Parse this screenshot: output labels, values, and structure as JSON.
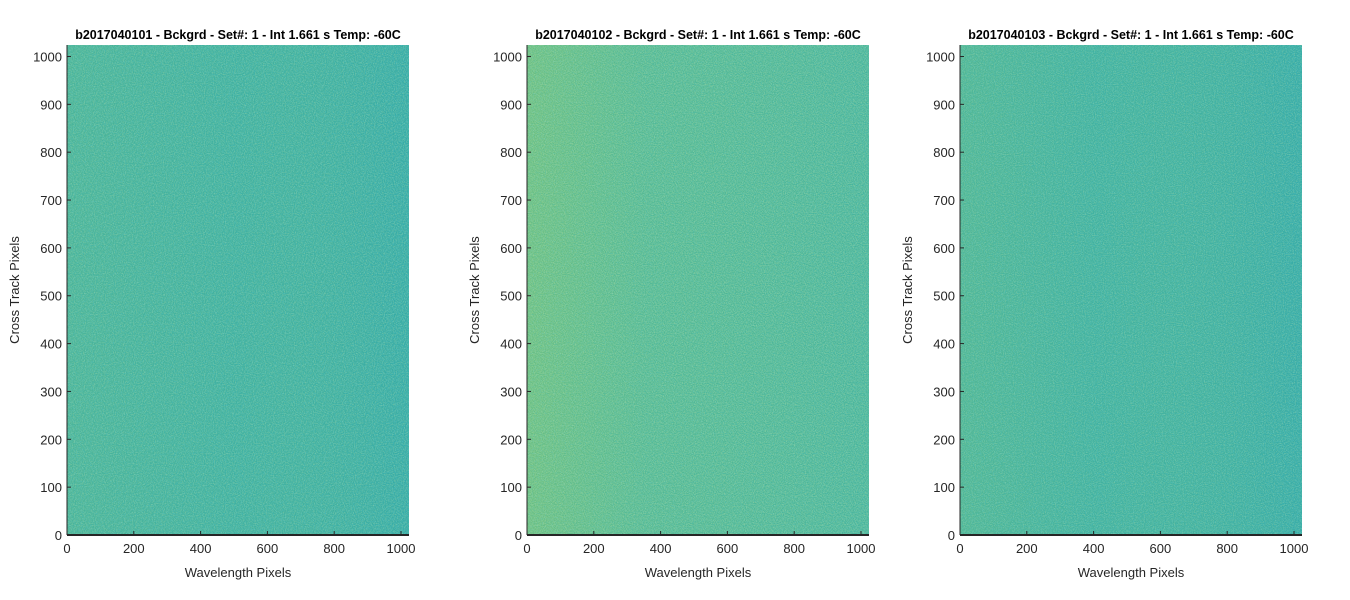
{
  "chart_data": [
    {
      "type": "heatmap",
      "title": "b2017040101 - Bckgrd - Set#: 1 - Int 1.661 s Temp: -60C",
      "xlabel": "Wavelength Pixels",
      "ylabel": "Cross Track Pixels",
      "xlim": [
        0,
        1024
      ],
      "ylim": [
        0,
        1024
      ],
      "x_ticks": [
        0,
        200,
        400,
        600,
        800,
        1000
      ],
      "y_ticks": [
        0,
        100,
        200,
        300,
        400,
        500,
        600,
        700,
        800,
        900,
        1000
      ],
      "grid": false,
      "colormap": "parula-noise",
      "colors": {
        "base": "#3FB0A0",
        "bright": "#7FC46A",
        "dark": "#1E9EB5"
      }
    },
    {
      "type": "heatmap",
      "title": "b2017040102 - Bckgrd - Set#: 1 - Int 1.661 s Temp: -60C",
      "xlabel": "Wavelength Pixels",
      "ylabel": "Cross Track Pixels",
      "xlim": [
        0,
        1024
      ],
      "ylim": [
        0,
        1024
      ],
      "x_ticks": [
        0,
        200,
        400,
        600,
        800,
        1000
      ],
      "y_ticks": [
        0,
        100,
        200,
        300,
        400,
        500,
        600,
        700,
        800,
        900,
        1000
      ],
      "grid": false,
      "colormap": "parula-noise",
      "colors": {
        "base": "#4AB69A",
        "bright": "#8CC866",
        "dark": "#27A3AF"
      }
    },
    {
      "type": "heatmap",
      "title": "b2017040103 - Bckgrd - Set#: 1 - Int 1.661 s Temp: -60C",
      "xlabel": "Wavelength Pixels",
      "ylabel": "Cross Track Pixels",
      "xlim": [
        0,
        1024
      ],
      "ylim": [
        0,
        1024
      ],
      "x_ticks": [
        0,
        200,
        400,
        600,
        800,
        1000
      ],
      "y_ticks": [
        0,
        100,
        200,
        300,
        400,
        500,
        600,
        700,
        800,
        900,
        1000
      ],
      "grid": false,
      "colormap": "parula-noise",
      "colors": {
        "base": "#40B1A0",
        "bright": "#7CC36B",
        "dark": "#1F9DB6"
      }
    }
  ]
}
